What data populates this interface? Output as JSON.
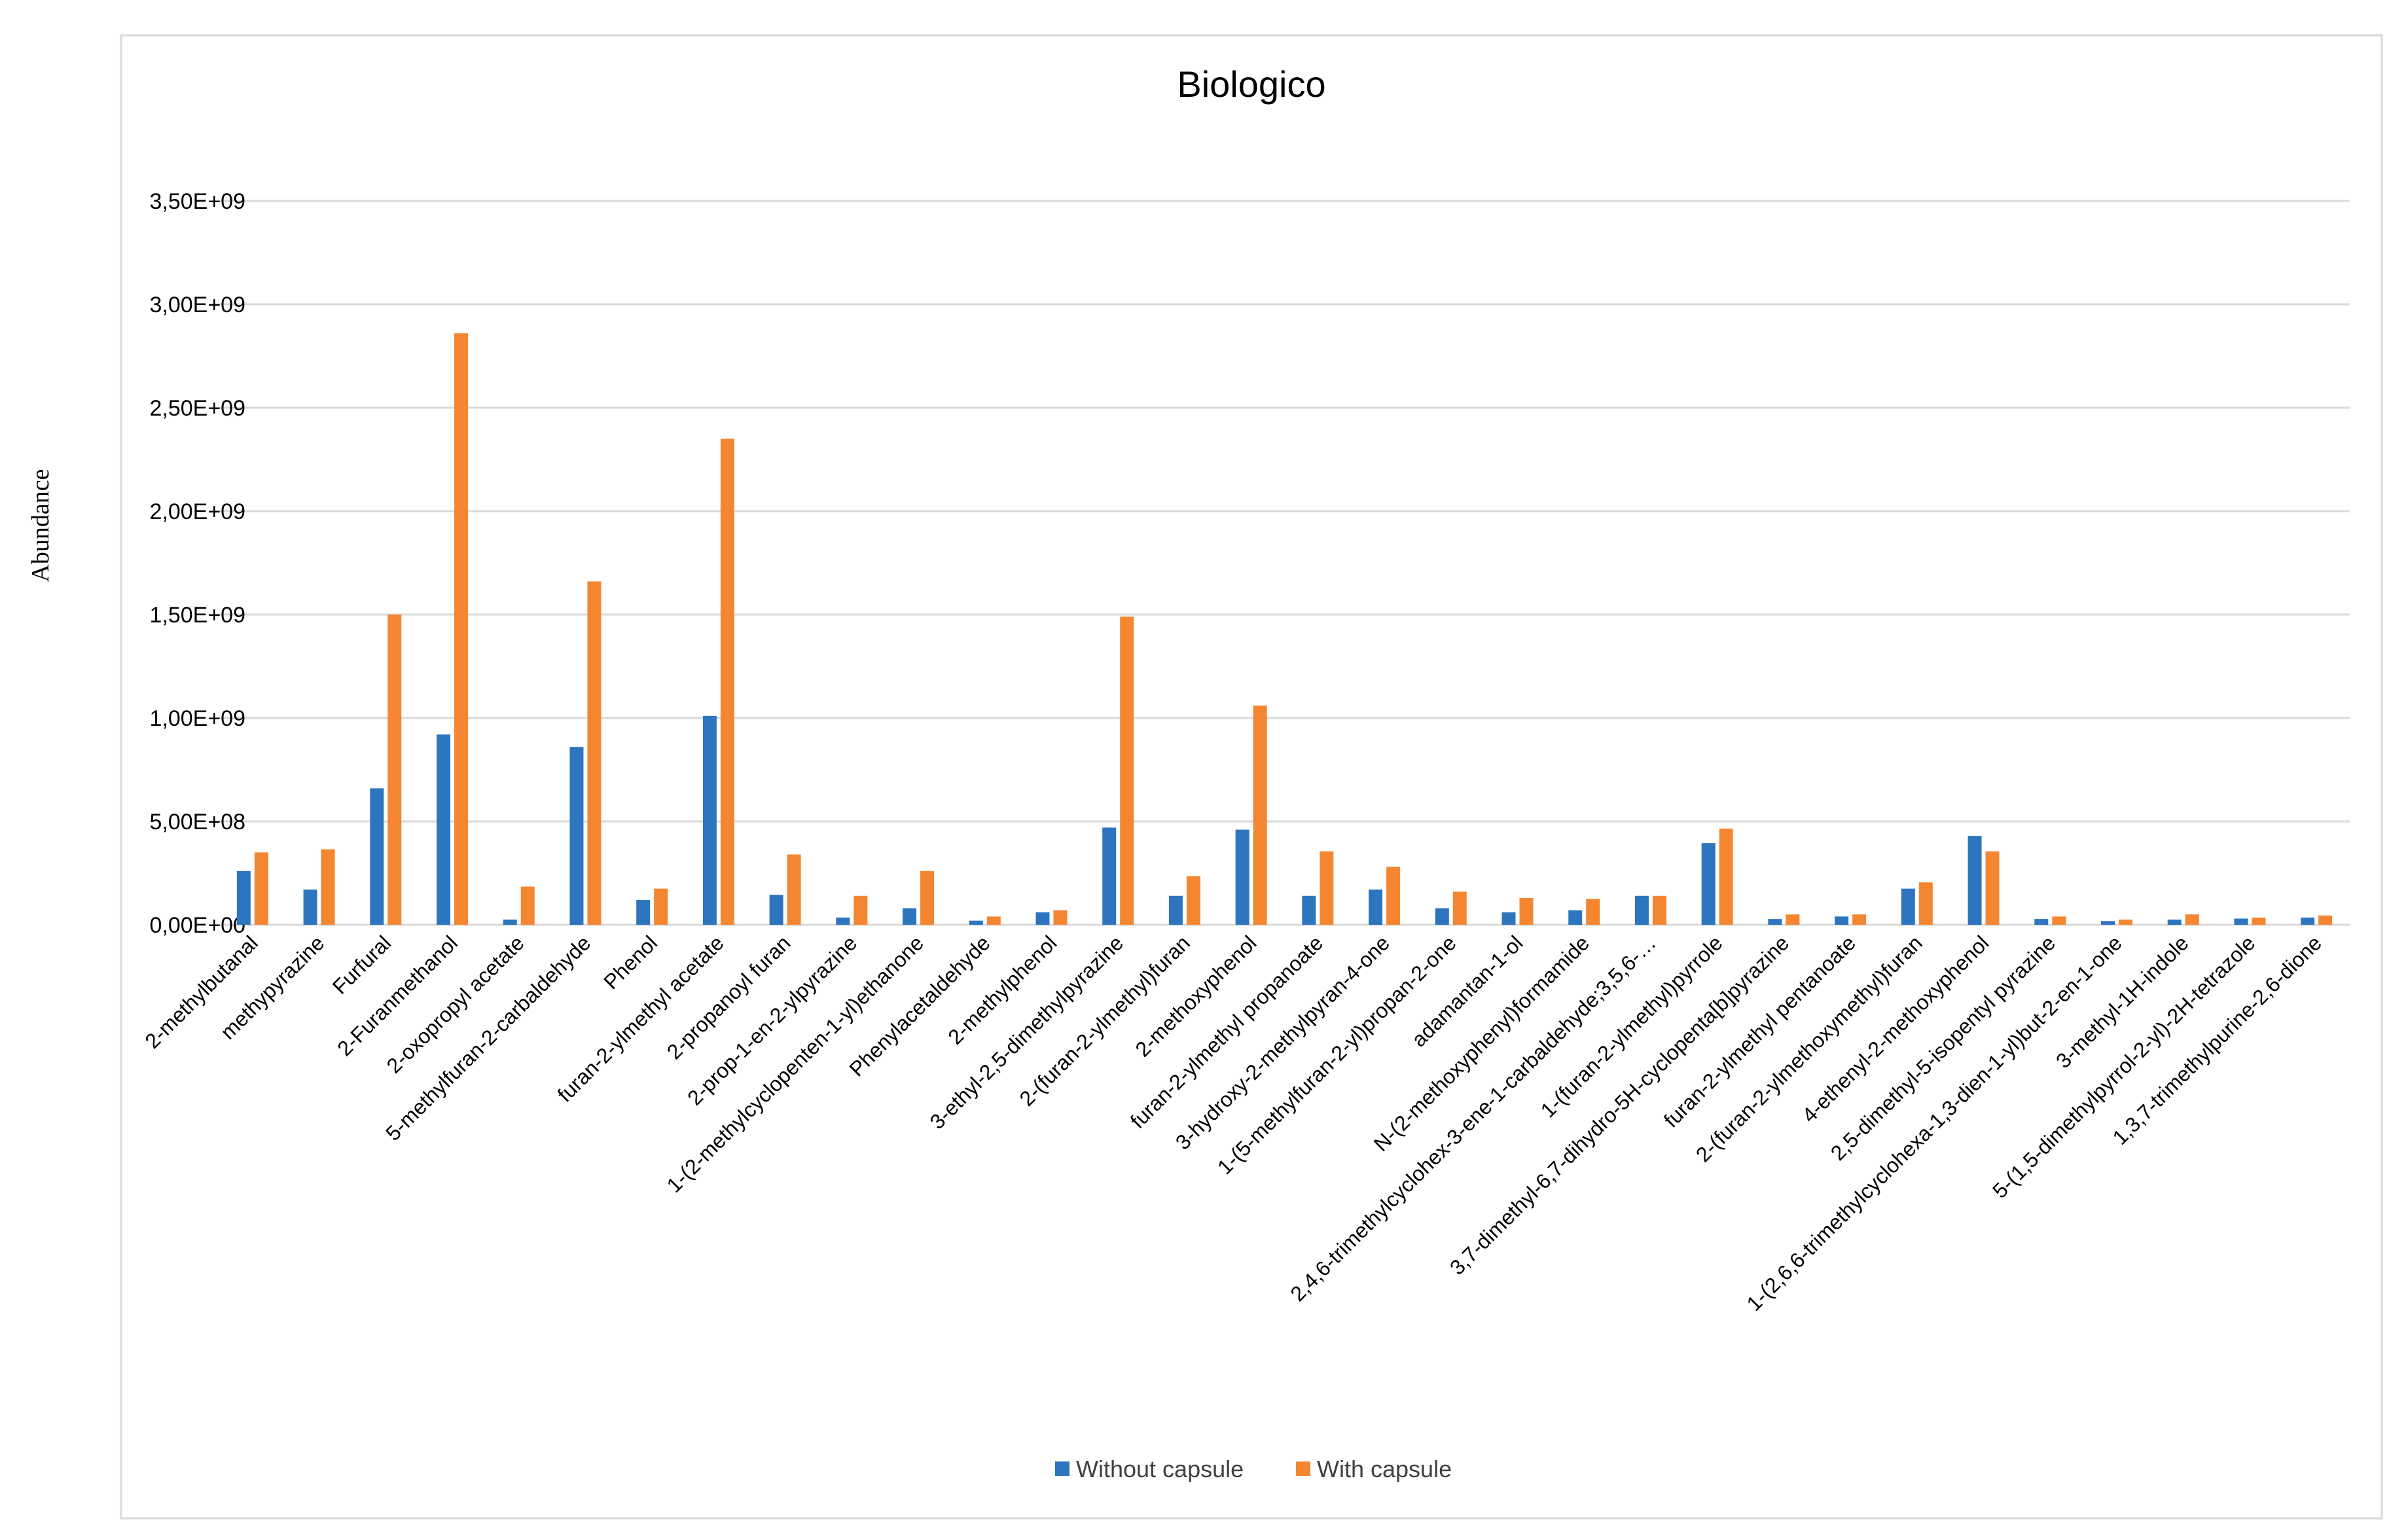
{
  "chart_data": {
    "type": "bar",
    "title": "Biologico",
    "xlabel": "",
    "ylabel": "Abundance",
    "ylim": [
      0,
      3500000000
    ],
    "yticks": [
      0,
      500000000,
      1000000000,
      1500000000,
      2000000000,
      2500000000,
      3000000000,
      3500000000
    ],
    "ytick_labels": [
      "0,00E+00",
      "5,00E+08",
      "1,00E+09",
      "1,50E+09",
      "2,00E+09",
      "2,50E+09",
      "3,00E+09",
      "3,50E+09"
    ],
    "grid": true,
    "legend_position": "bottom",
    "categories": [
      "2-methylbutanal",
      "methypyrazine",
      "Furfural",
      "2-Furanmethanol",
      "2-oxopropyl acetate",
      "5-methylfuran-2-carbaldehyde",
      "Phenol",
      "furan-2-ylmethyl acetate",
      "2-propanoyl furan",
      "2-prop-1-en-2-ylpyrazine",
      "1-(2-methylcyclopenten-1-yl)ethanone",
      "Phenylacetaldehyde",
      "2-methylphenol",
      "3-ethyl-2,5-dimethylpyrazine",
      "2-(furan-2-ylmethyl)furan",
      "2-methoxyphenol",
      "furan-2-ylmethyl propanoate",
      "3-hydroxy-2-methylpyran-4-one",
      "1-(5-methylfuran-2-yl)propan-2-one",
      "adamantan-1-ol",
      "N-(2-methoxyphenyl)formamide",
      "2,4,6-trimethylcyclohex-3-ene-1-carbaldehyde;3,5,6-…",
      "1-(furan-2-ylmethyl)pyrrole",
      "3,7-dimethyl-6,7-dihydro-5H-cyclopenta[b]pyrazine",
      "furan-2-ylmethyl pentanoate",
      "2-(furan-2-ylmethoxymethyl)furan",
      "4-ethenyl-2-methoxyphenol",
      "2,5-dimethyl-5-isopentyl pyrazine",
      "1-(2,6,6-trimethylcyclohexa-1,3-dien-1-yl)but-2-en-1-one",
      "3-methyl-1H-indole",
      "5-(1,5-dimethylpyrrol-2-yl)-2H-tetrazole",
      "1,3,7-trimethylpurine-2,6-dione"
    ],
    "series": [
      {
        "name": "Without capsule",
        "color": "#2e75c0",
        "values": [
          260000000,
          170000000,
          660000000,
          920000000,
          25000000,
          860000000,
          120000000,
          1010000000,
          145000000,
          35000000,
          80000000,
          20000000,
          60000000,
          470000000,
          140000000,
          460000000,
          140000000,
          170000000,
          80000000,
          60000000,
          70000000,
          140000000,
          395000000,
          28000000,
          40000000,
          175000000,
          430000000,
          28000000,
          18000000,
          25000000,
          30000000,
          35000000
        ]
      },
      {
        "name": "With capsule",
        "color": "#f58631",
        "values": [
          350000000,
          365000000,
          1500000000,
          2860000000,
          185000000,
          1660000000,
          175000000,
          2350000000,
          340000000,
          140000000,
          260000000,
          40000000,
          70000000,
          1490000000,
          235000000,
          1060000000,
          355000000,
          280000000,
          160000000,
          130000000,
          125000000,
          140000000,
          465000000,
          50000000,
          50000000,
          205000000,
          355000000,
          40000000,
          25000000,
          50000000,
          35000000,
          45000000
        ]
      }
    ]
  }
}
